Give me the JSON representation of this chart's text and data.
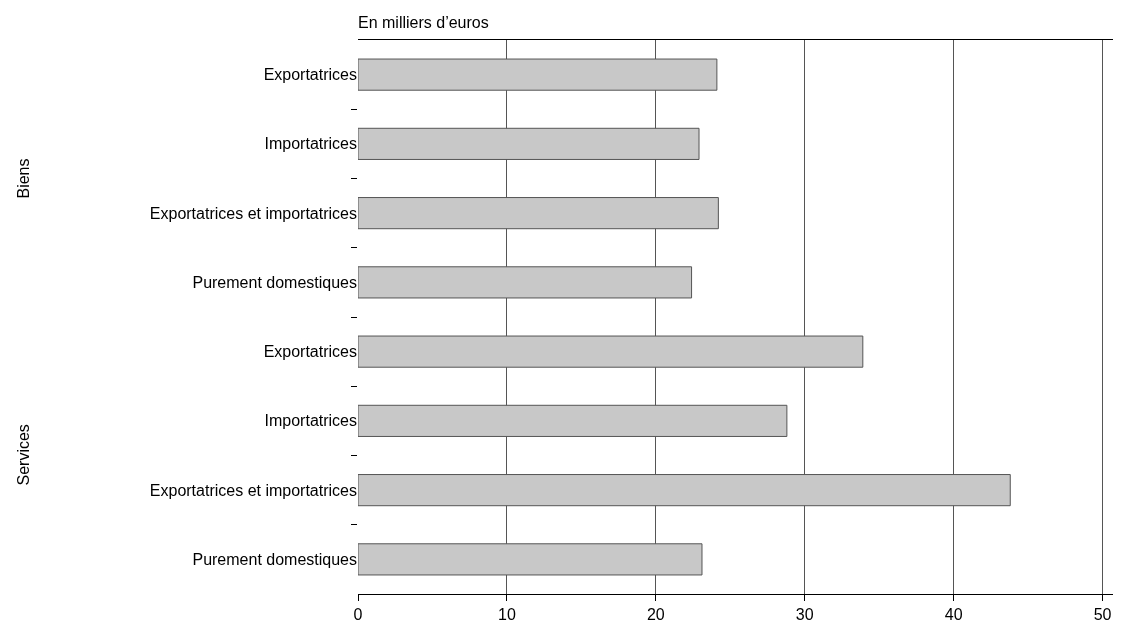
{
  "chart_data": {
    "type": "bar",
    "orientation": "horizontal",
    "title": "En milliers d’euros",
    "categories": [
      "Exportatrices",
      "Importatrices",
      "Exportatrices et importatrices",
      "Purement domestiques",
      "Exportatrices",
      "Importatrices",
      "Exportatrices et importatrices",
      "Purement domestiques"
    ],
    "values": [
      24.1,
      22.9,
      24.2,
      22.4,
      33.9,
      28.8,
      43.8,
      23.1
    ],
    "color": "#c8c8c8",
    "xlim": [
      0,
      50.7
    ],
    "xticks": [
      0,
      10,
      20,
      30,
      40,
      50
    ],
    "grid": "x",
    "annotations": [
      "Biens",
      "Services"
    ]
  }
}
